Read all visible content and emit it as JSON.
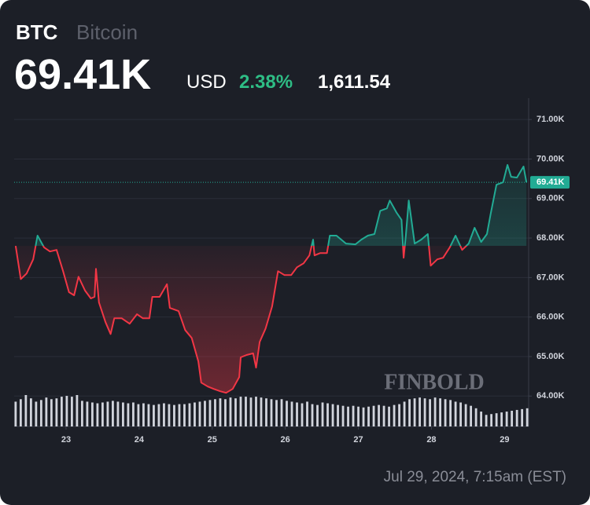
{
  "header": {
    "symbol": "BTC",
    "name": "Bitcoin",
    "price": "69.41K",
    "currency": "USD",
    "change_pct": "2.38%",
    "change": "1,611.54"
  },
  "chart_data": {
    "type": "line",
    "series": [
      {
        "name": "BTC",
        "up_color": "#22ab94",
        "down_color": "#f23645",
        "x": [
          22.31,
          22.38,
          22.46,
          22.55,
          22.61,
          22.7,
          22.78,
          22.87,
          22.96,
          23.04,
          23.11,
          23.17,
          23.26,
          23.34,
          23.39,
          23.41,
          23.45,
          23.54,
          23.61,
          23.66,
          23.76,
          23.87,
          23.97,
          24.05,
          24.14,
          24.18,
          24.28,
          24.38,
          24.42,
          24.54,
          24.63,
          24.72,
          24.81,
          24.85,
          24.94,
          25.02,
          25.11,
          25.19,
          25.28,
          25.37,
          25.39,
          25.47,
          25.56,
          25.6,
          25.65,
          25.73,
          25.82,
          25.9,
          25.99,
          26.08,
          26.16,
          26.25,
          26.33,
          26.38,
          26.4,
          26.48,
          26.57,
          26.61,
          26.7,
          26.83,
          26.96,
          27.04,
          27.13,
          27.22,
          27.3,
          27.39,
          27.43,
          27.52,
          27.59,
          27.62,
          27.65,
          27.69,
          27.77,
          27.86,
          27.95,
          27.99,
          28.08,
          28.16,
          28.25,
          28.33,
          28.42,
          28.51,
          28.59,
          28.68,
          28.76,
          28.81,
          28.89,
          28.98,
          29.04,
          29.09,
          29.17,
          29.26,
          29.3
        ],
        "values": [
          67.8,
          66.96,
          67.1,
          67.46,
          68.06,
          67.76,
          67.66,
          67.7,
          67.16,
          66.63,
          66.55,
          67.02,
          66.67,
          66.47,
          66.51,
          67.22,
          66.37,
          65.87,
          65.57,
          65.97,
          65.97,
          65.83,
          66.07,
          65.97,
          65.97,
          66.51,
          66.51,
          66.83,
          66.23,
          66.15,
          65.67,
          65.47,
          64.88,
          64.34,
          64.24,
          64.18,
          64.12,
          64.08,
          64.18,
          64.48,
          64.98,
          65.04,
          65.08,
          64.72,
          65.37,
          65.71,
          66.27,
          67.16,
          67.06,
          67.06,
          67.26,
          67.36,
          67.56,
          67.96,
          67.56,
          67.62,
          67.62,
          68.06,
          68.06,
          67.86,
          67.84,
          67.96,
          68.06,
          68.1,
          68.69,
          68.75,
          68.95,
          68.65,
          68.46,
          67.5,
          68.06,
          68.95,
          67.86,
          67.96,
          68.1,
          67.3,
          67.46,
          67.5,
          67.76,
          68.06,
          67.7,
          67.86,
          68.26,
          67.9,
          68.1,
          68.61,
          69.35,
          69.41,
          69.85,
          69.55,
          69.53,
          69.81,
          69.41
        ]
      }
    ],
    "volume": {
      "color": "#d1d4dc",
      "x": [
        22.31,
        22.38,
        22.45,
        22.52,
        22.59,
        22.66,
        22.73,
        22.8,
        22.87,
        22.94,
        23.01,
        23.08,
        23.15,
        23.22,
        23.29,
        23.36,
        23.43,
        23.5,
        23.57,
        23.64,
        23.71,
        23.78,
        23.85,
        23.92,
        23.99,
        24.06,
        24.13,
        24.2,
        24.27,
        24.34,
        24.41,
        24.48,
        24.55,
        24.62,
        24.69,
        24.76,
        24.83,
        24.9,
        24.97,
        25.04,
        25.11,
        25.18,
        25.25,
        25.32,
        25.39,
        25.46,
        25.53,
        25.6,
        25.67,
        25.74,
        25.81,
        25.88,
        25.95,
        26.02,
        26.09,
        26.16,
        26.23,
        26.3,
        26.37,
        26.44,
        26.51,
        26.58,
        26.65,
        26.72,
        26.79,
        26.86,
        26.93,
        27.0,
        27.07,
        27.14,
        27.21,
        27.28,
        27.35,
        27.42,
        27.49,
        27.56,
        27.63,
        27.7,
        27.77,
        27.84,
        27.91,
        27.98,
        28.05,
        28.12,
        28.19,
        28.26,
        28.33,
        28.4,
        28.47,
        28.54,
        28.61,
        28.68,
        28.75,
        28.82,
        28.89,
        28.96,
        29.03,
        29.1,
        29.17,
        29.24,
        29.31
      ],
      "values": [
        30,
        33,
        38,
        34,
        30,
        32,
        35,
        33,
        34,
        36,
        37,
        36,
        38,
        31,
        30,
        29,
        28,
        29,
        30,
        31,
        30,
        29,
        28,
        29,
        27,
        28,
        27,
        26,
        27,
        28,
        27,
        26,
        27,
        27,
        28,
        29,
        30,
        31,
        32,
        33,
        34,
        33,
        35,
        34,
        36,
        36,
        35,
        36,
        35,
        34,
        33,
        32,
        33,
        31,
        30,
        29,
        28,
        30,
        27,
        26,
        29,
        28,
        27,
        26,
        25,
        24,
        25,
        24,
        23,
        24,
        25,
        26,
        25,
        24,
        26,
        27,
        30,
        33,
        34,
        35,
        34,
        33,
        35,
        34,
        33,
        32,
        30,
        29,
        27,
        25,
        22,
        18,
        14,
        15,
        16,
        17,
        18,
        19,
        20,
        21,
        22
      ]
    },
    "xlim": [
      22.29,
      29.33
    ],
    "xticks": [
      23,
      24,
      25,
      26,
      27,
      28,
      29
    ],
    "ylim": [
      63.23,
      71.54
    ],
    "yticks": [
      {
        "value": 64,
        "label": "64.00K"
      },
      {
        "value": 65,
        "label": "65.00K"
      },
      {
        "value": 66,
        "label": "66.00K"
      },
      {
        "value": 67,
        "label": "67.00K"
      },
      {
        "value": 68,
        "label": "68.00K"
      },
      {
        "value": 69,
        "label": "69.00K"
      },
      {
        "value": 70,
        "label": "70.00K"
      },
      {
        "value": 71,
        "label": "71.00K"
      }
    ],
    "last_price": {
      "value": 69.41,
      "label": "69.41K"
    },
    "grid": true,
    "watermark": "FINBOLD"
  },
  "footer": {
    "timestamp": "Jul 29, 2024, 7:15am (EST)"
  }
}
